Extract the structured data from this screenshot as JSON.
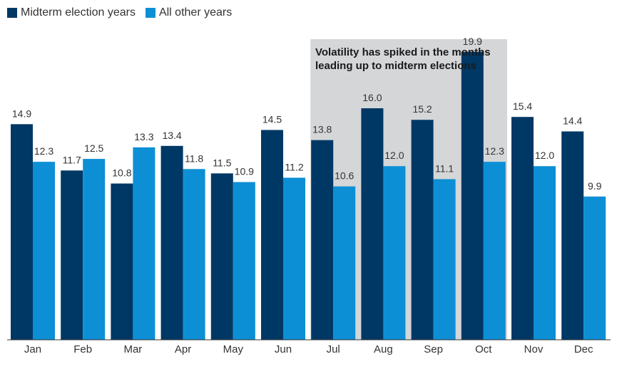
{
  "chart_data": {
    "type": "bar",
    "categories": [
      "Jan",
      "Feb",
      "Mar",
      "Apr",
      "May",
      "Jun",
      "Jul",
      "Aug",
      "Sep",
      "Oct",
      "Nov",
      "Dec"
    ],
    "series": [
      {
        "name": "Midterm election years",
        "color": "#003865",
        "values": [
          14.9,
          11.7,
          10.8,
          13.4,
          11.5,
          14.5,
          13.8,
          16.0,
          15.2,
          19.9,
          15.4,
          14.4
        ]
      },
      {
        "name": "All other years",
        "color": "#0d8fd5",
        "values": [
          12.3,
          12.5,
          13.3,
          11.8,
          10.9,
          11.2,
          10.6,
          12.0,
          11.1,
          12.3,
          12.0,
          9.9
        ]
      }
    ],
    "ylim": [
      0,
      22.3
    ],
    "grid": false,
    "legend_position": "top-left",
    "highlight": {
      "categories": [
        "Jul",
        "Aug",
        "Sep",
        "Oct"
      ],
      "color": "#d4d6d8",
      "text": "Volatility has spiked in the months leading up to midterm elections"
    },
    "axis_color": "#333333"
  }
}
